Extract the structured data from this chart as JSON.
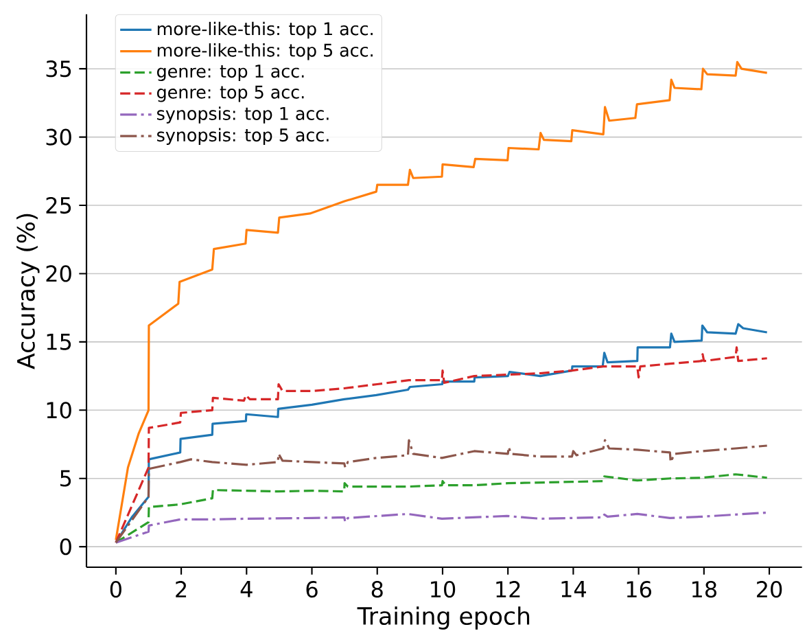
{
  "chart_data": {
    "type": "line",
    "xlabel": "Training epoch",
    "ylabel": "Accuracy (%)",
    "xlim": [
      -0.9,
      21
    ],
    "ylim": [
      -1.5,
      39
    ],
    "xticks": [
      0,
      2,
      4,
      6,
      8,
      10,
      12,
      14,
      16,
      18,
      20
    ],
    "yticks": [
      0,
      5,
      10,
      15,
      20,
      25,
      30,
      35
    ],
    "grid": "y",
    "legend": "top left",
    "marker": "none",
    "series": [
      {
        "name": "more-like-this: top 1 acc.",
        "color": "#1f77b4",
        "line_style": "solid",
        "x": [
          0,
          0.5,
          1.0,
          1.01,
          1.97,
          1.98,
          2.95,
          2.96,
          3.98,
          3.99,
          4.96,
          4.97,
          6.0,
          6.99,
          7.97,
          8.94,
          9.0,
          9.99,
          10.0,
          10.97,
          10.98,
          12.0,
          12.05,
          12.99,
          13.96,
          13.97,
          14.9,
          14.95,
          15.05,
          15.96,
          15.97,
          16.96,
          17.0,
          17.1,
          17.93,
          17.95,
          18.1,
          18.97,
          19.05,
          19.2,
          19.93
        ],
        "values": [
          0.3,
          2.2,
          3.65,
          6.4,
          6.9,
          7.9,
          8.2,
          9.0,
          9.2,
          9.7,
          9.5,
          10.1,
          10.4,
          10.8,
          11.1,
          11.5,
          11.7,
          11.9,
          12.1,
          12.1,
          12.4,
          12.5,
          12.8,
          12.5,
          12.9,
          13.2,
          13.2,
          14.2,
          13.5,
          13.6,
          14.6,
          14.6,
          15.6,
          15.0,
          15.1,
          16.2,
          15.7,
          15.6,
          16.3,
          16.0,
          15.7
        ]
      },
      {
        "name": "more-like-this: top 5 acc.",
        "color": "#ff7f0e",
        "line_style": "solid",
        "x": [
          0,
          0.37,
          0.7,
          1.0,
          1.01,
          1.91,
          1.95,
          2.95,
          3.0,
          3.97,
          4.0,
          4.96,
          5.0,
          5.94,
          7.0,
          7.97,
          8.0,
          8.94,
          9.0,
          9.1,
          9.98,
          10.0,
          10.95,
          11.0,
          11.99,
          12.02,
          12.94,
          13.0,
          13.1,
          13.94,
          13.97,
          14.92,
          14.97,
          15.1,
          15.9,
          15.95,
          16.95,
          17.0,
          17.1,
          17.92,
          17.97,
          18.1,
          18.97,
          19.02,
          19.15,
          19.93
        ],
        "values": [
          0.5,
          5.8,
          8.3,
          10.0,
          16.2,
          17.8,
          19.4,
          20.3,
          21.8,
          22.2,
          23.2,
          23.0,
          24.1,
          24.4,
          25.3,
          26.0,
          26.5,
          26.5,
          27.6,
          27.0,
          27.1,
          28.0,
          27.8,
          28.4,
          28.3,
          29.2,
          29.1,
          30.3,
          29.8,
          29.7,
          30.5,
          30.2,
          32.2,
          31.2,
          31.4,
          32.4,
          32.7,
          34.2,
          33.6,
          33.5,
          35.0,
          34.6,
          34.5,
          35.5,
          35.0,
          34.7
        ]
      },
      {
        "name": "genre: top 1 acc.",
        "color": "#2ca02c",
        "line_style": "dashed",
        "x": [
          0,
          1.0,
          1.01,
          1.97,
          2.95,
          2.97,
          3.95,
          4.96,
          6.0,
          6.99,
          7.0,
          7.1,
          7.97,
          8.94,
          9.98,
          10.0,
          10.1,
          10.97,
          12.0,
          13.96,
          14.9,
          14.95,
          15.96,
          16.96,
          17.93,
          18.97,
          19.93
        ],
        "values": [
          0.3,
          1.8,
          2.9,
          3.1,
          3.55,
          4.15,
          4.1,
          4.05,
          4.1,
          4.05,
          4.65,
          4.4,
          4.4,
          4.4,
          4.5,
          4.8,
          4.5,
          4.5,
          4.65,
          4.75,
          4.8,
          5.15,
          4.85,
          5.0,
          5.05,
          5.3,
          5.05
        ]
      },
      {
        "name": "genre: top 5 acc.",
        "color": "#d62728",
        "line_style": "dashed",
        "x": [
          0,
          1.0,
          1.01,
          1.97,
          1.99,
          2.95,
          2.97,
          3.92,
          3.98,
          4.1,
          4.96,
          4.98,
          5.1,
          6.0,
          6.99,
          8.0,
          8.97,
          9.98,
          10.0,
          10.05,
          10.97,
          12.0,
          12.99,
          13.96,
          14.9,
          15.96,
          16.0,
          16.05,
          16.96,
          17.93,
          17.96,
          18.0,
          18.97,
          19.0,
          19.05,
          19.93
        ],
        "values": [
          0.3,
          5.8,
          8.7,
          9.1,
          9.8,
          10.0,
          10.9,
          10.7,
          11.1,
          10.8,
          10.8,
          11.9,
          11.4,
          11.4,
          11.6,
          11.9,
          12.2,
          12.2,
          12.9,
          12.0,
          12.5,
          12.6,
          12.7,
          12.9,
          13.2,
          13.2,
          12.4,
          13.2,
          13.4,
          13.6,
          14.1,
          13.6,
          13.9,
          14.6,
          13.6,
          13.8
        ]
      },
      {
        "name": "synopsis: top 1 acc.",
        "color": "#9467bd",
        "line_style": "dashdot",
        "x": [
          0,
          1.0,
          1.01,
          1.97,
          2.95,
          3.98,
          6.0,
          6.99,
          7.02,
          7.1,
          8.94,
          9.98,
          11.97,
          12.99,
          14.9,
          14.95,
          15.05,
          15.96,
          16.96,
          17.93,
          19.93
        ],
        "values": [
          0.3,
          1.1,
          1.55,
          2.0,
          2.0,
          2.05,
          2.1,
          2.15,
          1.8,
          2.1,
          2.4,
          2.05,
          2.25,
          2.05,
          2.15,
          2.35,
          2.2,
          2.4,
          2.1,
          2.2,
          2.5
        ]
      },
      {
        "name": "synopsis: top 5 acc.",
        "color": "#8c564b",
        "line_style": "dashdot",
        "x": [
          0,
          1.0,
          1.01,
          1.97,
          2.3,
          2.95,
          4.0,
          4.96,
          4.98,
          5.1,
          6.0,
          6.99,
          7.02,
          7.1,
          7.97,
          8.94,
          8.97,
          9.1,
          9.98,
          10.97,
          12.0,
          12.02,
          12.1,
          12.99,
          13.96,
          14.0,
          14.1,
          14.92,
          14.97,
          15.1,
          15.96,
          16.96,
          16.98,
          17.1,
          17.93,
          18.97,
          19.93
        ],
        "values": [
          0.3,
          3.65,
          5.7,
          6.2,
          6.4,
          6.2,
          6.0,
          6.2,
          6.8,
          6.3,
          6.2,
          6.1,
          5.8,
          6.2,
          6.5,
          6.7,
          7.8,
          6.8,
          6.5,
          7.0,
          6.8,
          7.3,
          6.8,
          6.6,
          6.6,
          7.0,
          6.7,
          7.2,
          7.8,
          7.2,
          7.1,
          6.9,
          6.2,
          6.8,
          7.0,
          7.2,
          7.4
        ]
      }
    ]
  }
}
